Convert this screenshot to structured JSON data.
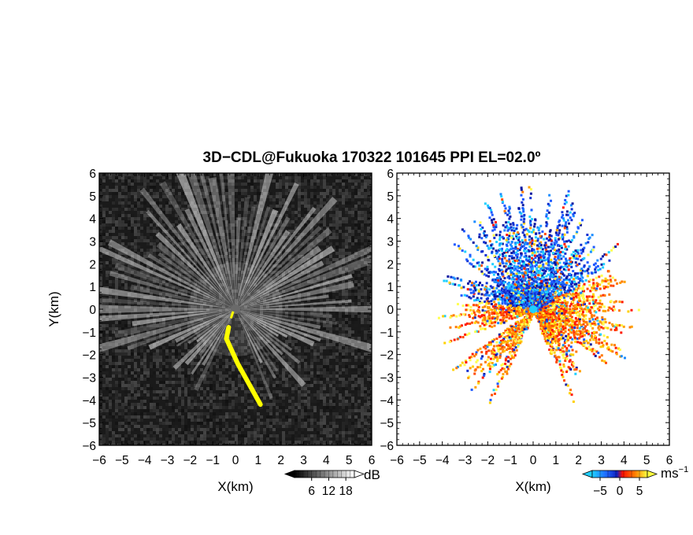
{
  "chart_data": [
    {
      "type": "heatmap",
      "title": "3D−CDL@Fukuoka 170322 101645 PPI EL=02.0º",
      "quantity": "backscatter intensity",
      "xlabel": "X(km)",
      "ylabel": "Y(km)",
      "xlim": [
        -6,
        6
      ],
      "ylim": [
        -6,
        6
      ],
      "xticks": [
        "−6",
        "−5",
        "−4",
        "−3",
        "−2",
        "−1",
        "0",
        "1",
        "2",
        "3",
        "4",
        "5",
        "6"
      ],
      "yticks": [
        "−6",
        "−5",
        "−4",
        "−3",
        "−2",
        "−1",
        "0",
        "1",
        "2",
        "3",
        "4",
        "5",
        "6"
      ],
      "colorscale": "grayscale (black to white)",
      "colorbar": {
        "unit": "dB",
        "ticks": [
          6,
          12,
          18
        ],
        "tick_labels": [
          "6",
          "12",
          "18"
        ],
        "range": [
          0,
          21
        ]
      },
      "highlight_color": "#ffff00",
      "highlight_region_x": [
        -0.4,
        1.2
      ],
      "highlight_region_y": [
        -4.2,
        -0.8
      ]
    },
    {
      "type": "heatmap",
      "quantity": "radial velocity",
      "xlabel": "X(km)",
      "ylabel": "",
      "xlim": [
        -6,
        6
      ],
      "ylim": [
        -6,
        6
      ],
      "xticks": [
        "−6",
        "−5",
        "−4",
        "−3",
        "−2",
        "−1",
        "0",
        "1",
        "2",
        "3",
        "4",
        "5",
        "6"
      ],
      "yticks": [
        "−6",
        "−5",
        "−4",
        "−3",
        "−2",
        "−1",
        "0",
        "1",
        "2",
        "3",
        "4",
        "5",
        "6"
      ],
      "colorscale": "cyan-blue (negative) to red-orange-yellow (positive)",
      "colorbar": {
        "unit": "ms",
        "unit_exponent": "−1",
        "ticks": [
          -5,
          0,
          5
        ],
        "tick_labels": [
          "−5",
          "0",
          "5"
        ],
        "range": [
          -7,
          7
        ]
      }
    }
  ]
}
